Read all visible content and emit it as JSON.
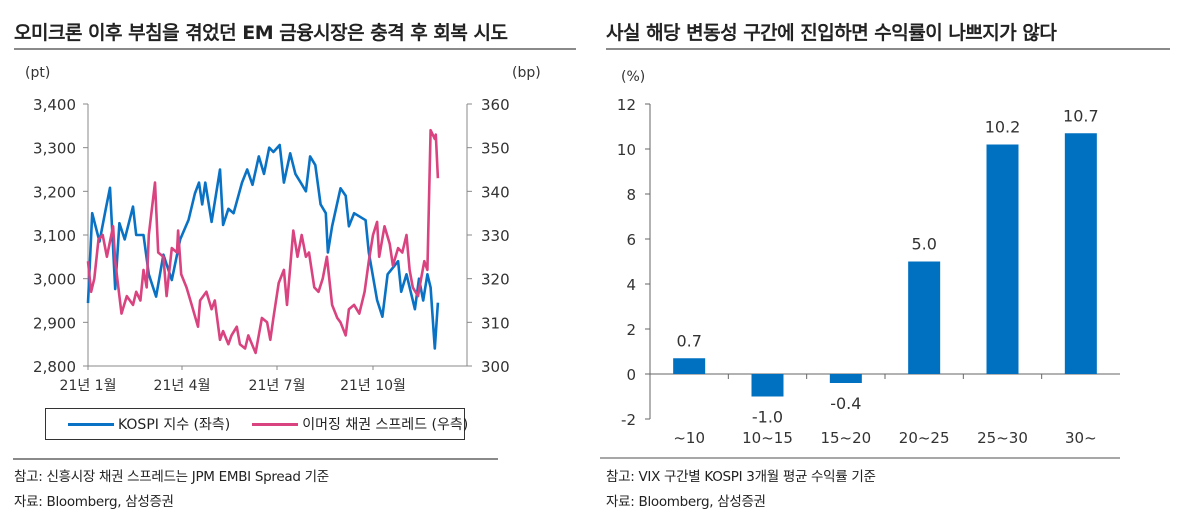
{
  "left": {
    "title": "오미크론 이후 부침을 겪었던 EM 금융시장은 충격 후 회복 시도",
    "note": "참고: 신흥시장 채권 스프레드는 JPM EMBI Spread 기준",
    "source": "자료: Bloomberg, 삼성증권"
  },
  "right": {
    "title": "사실 해당 변동성 구간에 진입하면 수익률이 나쁘지가 않다",
    "note": "참고: VIX 구간별 KOSPI 3개월 평균 수익률 기준",
    "source": "자료: Bloomberg, 삼성증권"
  },
  "chart_data": [
    {
      "type": "line",
      "y_unit_left": "(pt)",
      "y_unit_right": "(bp)",
      "ylim_left": [
        2800,
        3400
      ],
      "yticks_left": [
        "2,800",
        "2,900",
        "3,000",
        "3,100",
        "3,200",
        "3,300",
        "3,400"
      ],
      "ylim_right": [
        300,
        360
      ],
      "yticks_right": [
        "300",
        "310",
        "320",
        "330",
        "340",
        "350",
        "360"
      ],
      "xticks": [
        "21년 1월",
        "21년 4월",
        "21년 7월",
        "21년 10월"
      ],
      "grid": false,
      "legend": "bottom",
      "series": [
        {
          "name": "KOSPI 지수 (좌측)",
          "axis": "left",
          "color": "#0a72c4",
          "x": [
            "2021-01-01",
            "2021-01-05",
            "2021-01-12",
            "2021-01-18",
            "2021-01-22",
            "2021-01-27",
            "2021-01-31",
            "2021-02-05",
            "2021-02-13",
            "2021-02-16",
            "2021-02-23",
            "2021-02-28",
            "2021-03-07",
            "2021-03-14",
            "2021-03-22",
            "2021-03-30",
            "2021-04-07",
            "2021-04-13",
            "2021-04-17",
            "2021-04-20",
            "2021-04-23",
            "2021-04-29",
            "2021-05-07",
            "2021-05-10",
            "2021-05-15",
            "2021-05-20",
            "2021-05-28",
            "2021-06-02",
            "2021-06-07",
            "2021-06-13",
            "2021-06-18",
            "2021-06-23",
            "2021-06-27",
            "2021-07-03",
            "2021-07-07",
            "2021-07-13",
            "2021-07-18",
            "2021-07-23",
            "2021-07-28",
            "2021-08-01",
            "2021-08-06",
            "2021-08-11",
            "2021-08-16",
            "2021-08-18",
            "2021-08-22",
            "2021-08-30",
            "2021-09-04",
            "2021-09-07",
            "2021-09-12",
            "2021-09-23",
            "2021-09-26",
            "2021-10-04",
            "2021-10-09",
            "2021-10-14",
            "2021-10-24",
            "2021-10-27",
            "2021-11-01",
            "2021-11-09",
            "2021-11-13",
            "2021-11-17",
            "2021-11-21",
            "2021-11-24",
            "2021-11-28",
            "2021-12-01"
          ],
          "y": [
            2944,
            3150,
            3085,
            3160,
            3208,
            2976,
            3127,
            3090,
            3165,
            3100,
            3100,
            3010,
            2959,
            3055,
            2997,
            3090,
            3135,
            3195,
            3220,
            3170,
            3220,
            3130,
            3250,
            3123,
            3160,
            3150,
            3220,
            3250,
            3215,
            3280,
            3240,
            3300,
            3290,
            3306,
            3220,
            3287,
            3240,
            3220,
            3200,
            3280,
            3260,
            3170,
            3150,
            3060,
            3120,
            3207,
            3190,
            3120,
            3150,
            3134,
            3060,
            2951,
            2913,
            3010,
            3040,
            2970,
            3010,
            2930,
            3000,
            2950,
            3010,
            2980,
            2840,
            2945
          ]
        },
        {
          "name": "이머징 채권 스프레드 (우측)",
          "axis": "right",
          "color": "#d9437f",
          "x": [
            "2021-01-01",
            "2021-01-04",
            "2021-01-07",
            "2021-01-11",
            "2021-01-15",
            "2021-01-19",
            "2021-01-25",
            "2021-01-27",
            "2021-02-02",
            "2021-02-07",
            "2021-02-13",
            "2021-02-16",
            "2021-02-20",
            "2021-02-23",
            "2021-02-26",
            "2021-02-28",
            "2021-03-06",
            "2021-03-09",
            "2021-03-14",
            "2021-03-17",
            "2021-03-22",
            "2021-03-27",
            "2021-03-28",
            "2021-03-31",
            "2021-04-05",
            "2021-04-10",
            "2021-04-16",
            "2021-04-18",
            "2021-04-24",
            "2021-04-29",
            "2021-05-02",
            "2021-05-07",
            "2021-05-10",
            "2021-05-15",
            "2021-05-18",
            "2021-05-23",
            "2021-05-26",
            "2021-05-31",
            "2021-06-03",
            "2021-06-10",
            "2021-06-16",
            "2021-06-21",
            "2021-06-24",
            "2021-06-27",
            "2021-07-02",
            "2021-07-07",
            "2021-07-10",
            "2021-07-16",
            "2021-07-20",
            "2021-07-24",
            "2021-07-28",
            "2021-07-31",
            "2021-08-05",
            "2021-08-09",
            "2021-08-13",
            "2021-08-17",
            "2021-08-22",
            "2021-08-27",
            "2021-08-30",
            "2021-09-04",
            "2021-09-07",
            "2021-09-12",
            "2021-09-17",
            "2021-09-22",
            "2021-09-26",
            "2021-09-30",
            "2021-10-04",
            "2021-10-06",
            "2021-10-11",
            "2021-10-16",
            "2021-10-19",
            "2021-10-24",
            "2021-10-28",
            "2021-11-01",
            "2021-11-04",
            "2021-11-07",
            "2021-11-12",
            "2021-11-15",
            "2021-11-18",
            "2021-11-21",
            "2021-11-24",
            "2021-11-28",
            "2021-11-29",
            "2021-12-01"
          ],
          "y": [
            324,
            317,
            320,
            329,
            330,
            325,
            332,
            324,
            312,
            316,
            314,
            317,
            315,
            322,
            318,
            330,
            342,
            326,
            325,
            316,
            327,
            326,
            331,
            321,
            318,
            314,
            309,
            315,
            317,
            313,
            315,
            306,
            308,
            305,
            307,
            309,
            305,
            304,
            307,
            303,
            311,
            310,
            306,
            311,
            319,
            322,
            314,
            331,
            325,
            330,
            325,
            326,
            318,
            317,
            320,
            325,
            314,
            311,
            310,
            307,
            313,
            314,
            312,
            317,
            324,
            330,
            333,
            325,
            332,
            328,
            323,
            327,
            326,
            330,
            322,
            318,
            316,
            320,
            324,
            322,
            354,
            352,
            353,
            343
          ]
        }
      ]
    },
    {
      "type": "bar",
      "y_unit": "(%)",
      "categories": [
        "~10",
        "10~15",
        "15~20",
        "20~25",
        "25~30",
        "30~"
      ],
      "values": [
        0.7,
        -1.0,
        -0.4,
        5.0,
        10.2,
        10.7
      ],
      "data_labels": [
        "0.7",
        "-1.0",
        "-0.4",
        "5.0",
        "10.2",
        "10.7"
      ],
      "ylim": [
        -2,
        12
      ],
      "yticks": [
        "-2",
        "0",
        "2",
        "4",
        "6",
        "8",
        "10",
        "12"
      ],
      "color": "#0070c0",
      "grid": false
    }
  ]
}
